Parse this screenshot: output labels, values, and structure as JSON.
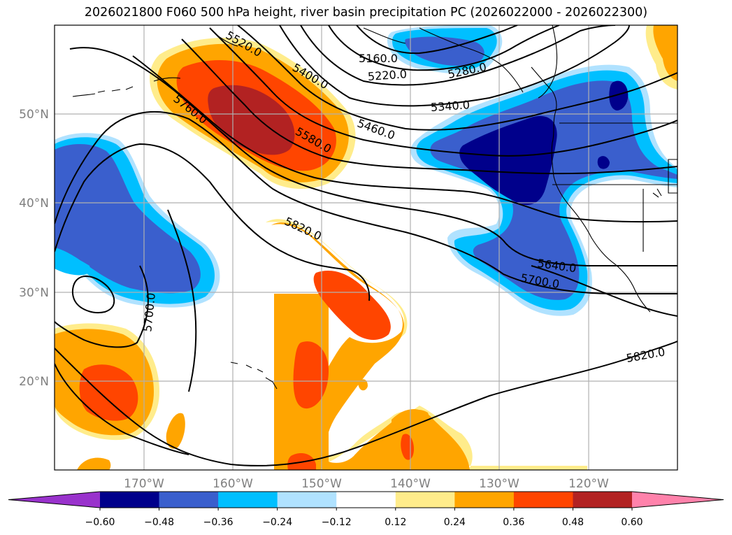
{
  "title": "2026021800 F060 500 hPa height, river basin precipitation PC (2026022000 - 2026022300)",
  "map": {
    "lat_labels": [
      "50°N",
      "40°N",
      "30°N",
      "20°N"
    ],
    "lon_labels": [
      "170°W",
      "160°W",
      "150°W",
      "140°W",
      "130°W",
      "120°W"
    ],
    "contour_labels": [
      "5160.0",
      "5220.0",
      "5280.0",
      "5340.0",
      "5400.0",
      "5460.0",
      "5520.0",
      "5580.0",
      "5640.0",
      "5700.0",
      "5700.0",
      "5760.0",
      "5820.0",
      "5820.0"
    ]
  },
  "colorbar": {
    "ticks": [
      "−0.60",
      "−0.48",
      "−0.36",
      "−0.24",
      "−0.12",
      "0.12",
      "0.24",
      "0.36",
      "0.48",
      "0.60"
    ],
    "colors": [
      "#9932cc",
      "#00008b",
      "#3a5fcd",
      "#00bfff",
      "#b0e2ff",
      "#ffffff",
      "#ffec8b",
      "#ffa500",
      "#ff4500",
      "#b22222",
      "#ff82ab"
    ]
  }
}
